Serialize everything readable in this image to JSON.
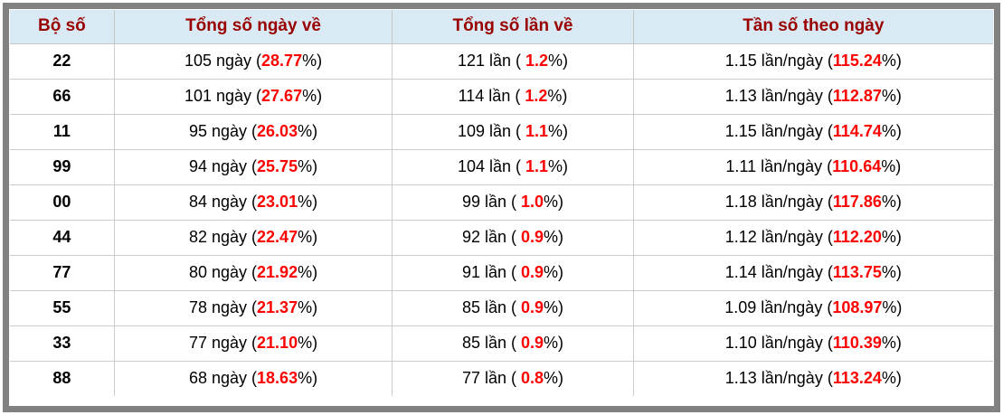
{
  "colors": {
    "frame_border": "#818181",
    "header_background": "#d9eaf5",
    "header_text": "#990000",
    "highlight_percent": "#ff0000",
    "body_text": "#000000",
    "cell_border": "#cccccc"
  },
  "table": {
    "headers": [
      "Bộ số",
      "Tổng số ngày về",
      "Tổng số lần về",
      "Tần số theo ngày"
    ],
    "rows": [
      {
        "pair": "22",
        "days_prefix": "105 ngày (",
        "days_pct": "28.77",
        "days_suffix": "%)",
        "times_prefix": "121 lần ( ",
        "times_pct": "1.2",
        "times_suffix": "%)",
        "freq_prefix": "1.15 lần/ngày (",
        "freq_pct": "115.24",
        "freq_suffix": "%)"
      },
      {
        "pair": "66",
        "days_prefix": "101 ngày (",
        "days_pct": "27.67",
        "days_suffix": "%)",
        "times_prefix": "114 lần ( ",
        "times_pct": "1.2",
        "times_suffix": "%)",
        "freq_prefix": "1.13 lần/ngày (",
        "freq_pct": "112.87",
        "freq_suffix": "%)"
      },
      {
        "pair": "11",
        "days_prefix": "95 ngày (",
        "days_pct": "26.03",
        "days_suffix": "%)",
        "times_prefix": "109 lần ( ",
        "times_pct": "1.1",
        "times_suffix": "%)",
        "freq_prefix": "1.15 lần/ngày (",
        "freq_pct": "114.74",
        "freq_suffix": "%)"
      },
      {
        "pair": "99",
        "days_prefix": "94 ngày (",
        "days_pct": "25.75",
        "days_suffix": "%)",
        "times_prefix": "104 lần ( ",
        "times_pct": "1.1",
        "times_suffix": "%)",
        "freq_prefix": "1.11 lần/ngày (",
        "freq_pct": "110.64",
        "freq_suffix": "%)"
      },
      {
        "pair": "00",
        "days_prefix": "84 ngày (",
        "days_pct": "23.01",
        "days_suffix": "%)",
        "times_prefix": "99 lần ( ",
        "times_pct": "1.0",
        "times_suffix": "%)",
        "freq_prefix": "1.18 lần/ngày (",
        "freq_pct": "117.86",
        "freq_suffix": "%)"
      },
      {
        "pair": "44",
        "days_prefix": "82 ngày (",
        "days_pct": "22.47",
        "days_suffix": "%)",
        "times_prefix": "92 lần ( ",
        "times_pct": "0.9",
        "times_suffix": "%)",
        "freq_prefix": "1.12 lần/ngày (",
        "freq_pct": "112.20",
        "freq_suffix": "%)"
      },
      {
        "pair": "77",
        "days_prefix": "80 ngày (",
        "days_pct": "21.92",
        "days_suffix": "%)",
        "times_prefix": "91 lần ( ",
        "times_pct": "0.9",
        "times_suffix": "%)",
        "freq_prefix": "1.14 lần/ngày (",
        "freq_pct": "113.75",
        "freq_suffix": "%)"
      },
      {
        "pair": "55",
        "days_prefix": "78 ngày (",
        "days_pct": "21.37",
        "days_suffix": "%)",
        "times_prefix": "85 lần ( ",
        "times_pct": "0.9",
        "times_suffix": "%)",
        "freq_prefix": "1.09 lần/ngày (",
        "freq_pct": "108.97",
        "freq_suffix": "%)"
      },
      {
        "pair": "33",
        "days_prefix": "77 ngày (",
        "days_pct": "21.10",
        "days_suffix": "%)",
        "times_prefix": "85 lần ( ",
        "times_pct": "0.9",
        "times_suffix": "%)",
        "freq_prefix": "1.10 lần/ngày (",
        "freq_pct": "110.39",
        "freq_suffix": "%)"
      },
      {
        "pair": "88",
        "days_prefix": "68 ngày (",
        "days_pct": "18.63",
        "days_suffix": "%)",
        "times_prefix": "77 lần ( ",
        "times_pct": "0.8",
        "times_suffix": "%)",
        "freq_prefix": "1.13 lần/ngày (",
        "freq_pct": "113.24",
        "freq_suffix": "%)"
      }
    ]
  }
}
